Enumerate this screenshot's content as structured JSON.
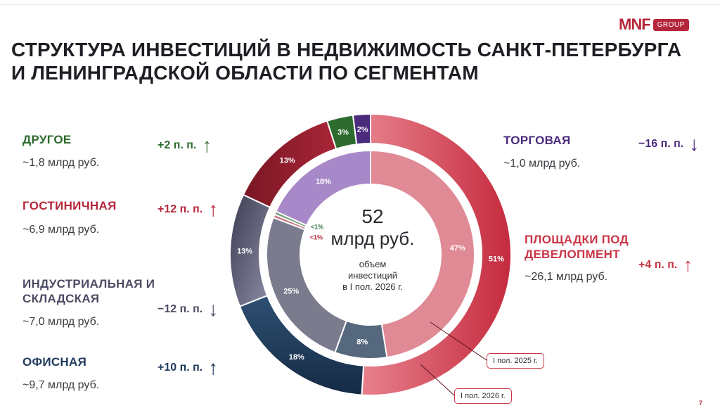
{
  "header": {
    "logo_mark": "MNF",
    "logo_group": "GROUP",
    "title_line1": "СТРУКТУРА ИНВЕСТИЦИЙ В НЕДВИЖИМОСТЬ САНКТ-ПЕТЕРБУРГА",
    "title_line2": "И ЛЕНИНГРАДСКОЙ ОБЛАСТИ ПО СЕГМЕНТАМ"
  },
  "segments": {
    "other": {
      "name": "ДРУГОЕ",
      "amount": "~1,8 млрд руб.",
      "change": "+2 п. п.",
      "arrow": "↑",
      "color": "#2e6b2e"
    },
    "hotel": {
      "name": "ГОСТИНИЧНАЯ",
      "amount": "~6,9 млрд руб.",
      "change": "+12 п. п.",
      "arrow": "↑",
      "color": "#b5263a"
    },
    "industrial": {
      "name_line1": "ИНДУСТРИАЛЬНАЯ И",
      "name_line2": "СКЛАДСКАЯ",
      "amount": "~7,0 млрд руб.",
      "change": "−12 п. п.",
      "arrow": "↓",
      "color": "#4b4b63"
    },
    "office": {
      "name": "ОФИСНАЯ",
      "amount": "~9,7 млрд руб.",
      "change": "+10 п. п.",
      "arrow": "↑",
      "color": "#1f3a5a"
    },
    "retail": {
      "name": "ТОРГОВАЯ",
      "amount": "~1,0 млрд руб.",
      "change": "−16 п. п.",
      "arrow": "↓",
      "color": "#4a2a7a"
    },
    "development": {
      "name_line1": "ПЛОЩАДКИ ПОД",
      "name_line2": "ДЕВЕЛОПМЕНТ",
      "amount": "~26,1 млрд руб.",
      "change": "+4 п. п.",
      "arrow": "↑",
      "color": "#c93546"
    }
  },
  "center": {
    "total": "52",
    "unit": "млрд руб.",
    "desc_line1": "объем",
    "desc_line2": "инвестиций",
    "desc_line3": "в I пол. 2026 г."
  },
  "callouts": {
    "inner": "I пол. 2025 г.",
    "outer": "I пол. 2026 г."
  },
  "page_number": "7",
  "chart_data": {
    "type": "donut",
    "title": "СТРУКТУРА ИНВЕСТИЦИЙ В НЕДВИЖИМОСТЬ САНКТ-ПЕТЕРБУРГА И ЛЕНИНГРАДСКОЙ ОБЛАСТИ ПО СЕГМЕНТАМ",
    "categories": [
      "ПЛОЩАДКИ ПОД ДЕВЕЛОПМЕНТ",
      "ОФИСНАЯ",
      "ИНДУСТРИАЛЬНАЯ И СКЛАДСКАЯ",
      "ГОСТИНИЧНАЯ",
      "ДРУГОЕ",
      "ТОРГОВАЯ"
    ],
    "series": [
      {
        "name": "I пол. 2026 г.",
        "ring": "outer",
        "values": [
          51,
          18,
          13,
          13,
          3,
          2
        ],
        "labels": [
          "51%",
          "18%",
          "13%",
          "13%",
          "3%",
          "2%"
        ],
        "colors": [
          "#c93546",
          "#1f3a5a",
          "#5d5d78",
          "#8f1d2c",
          "#2e6b2e",
          "#4a2a7a"
        ]
      },
      {
        "name": "I пол. 2025 г.",
        "ring": "inner",
        "values": [
          47,
          8,
          25,
          0.5,
          0.5,
          18
        ],
        "labels": [
          "47%",
          "8%",
          "25%",
          "<1%",
          "<1%",
          "18%"
        ],
        "colors": [
          "#e08a95",
          "#56687e",
          "#7b7b8e",
          "#c6707b",
          "#6f9e7b",
          "#a788c8"
        ]
      }
    ]
  }
}
